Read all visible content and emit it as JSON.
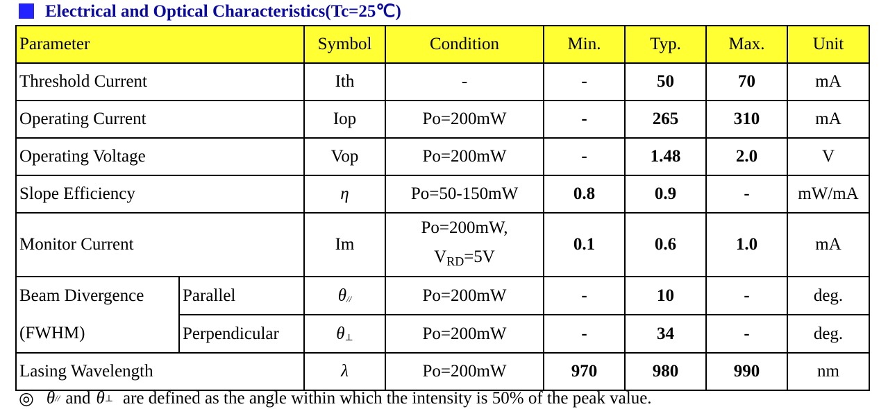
{
  "title": {
    "text": "Electrical and Optical Characteristics(Tc=25℃)",
    "accent_color": "#2323ff",
    "text_color": "#0a0aa0"
  },
  "table": {
    "header_color": "#ffff33",
    "headers": {
      "parameter": "Parameter",
      "symbol": "Symbol",
      "condition": "Condition",
      "min": "Min.",
      "typ": "Typ.",
      "max": "Max.",
      "unit": "Unit"
    },
    "rows": [
      {
        "parameter": "Threshold Current",
        "symbol": "Ith",
        "condition": "-",
        "min": "-",
        "typ": "50",
        "max": "70",
        "unit": "mA"
      },
      {
        "parameter": "Operating Current",
        "symbol": "Iop",
        "condition": "Po=200mW",
        "min": "-",
        "typ": "265",
        "max": "310",
        "unit": "mA"
      },
      {
        "parameter": "Operating Voltage",
        "symbol": "Vop",
        "condition": "Po=200mW",
        "min": "-",
        "typ": "1.48",
        "max": "2.0",
        "unit": "V"
      },
      {
        "parameter": "Slope Efficiency",
        "symbol": "η",
        "condition": "Po=50-150mW",
        "min": "0.8",
        "typ": "0.9",
        "max": "-",
        "unit": "mW/mA"
      },
      {
        "parameter": "Monitor Current",
        "symbol": "Im",
        "condition_line1": "Po=200mW,",
        "condition_line2_main": "V",
        "condition_line2_sub": "RD",
        "condition_line2_rest": "=5V",
        "min": "0.1",
        "typ": "0.6",
        "max": "1.0",
        "unit": "mA"
      }
    ],
    "beam": {
      "parameter_line1": "Beam Divergence",
      "parameter_line2": "(FWHM)",
      "parallel": {
        "sub_param": "Parallel",
        "symbol_main": "θ",
        "symbol_sub": "//",
        "condition": "Po=200mW",
        "min": "-",
        "typ": "10",
        "max": "-",
        "unit": "deg."
      },
      "perpendicular": {
        "sub_param": "Perpendicular",
        "symbol_main": "θ",
        "symbol_sub": "⊥",
        "condition": "Po=200mW",
        "min": "-",
        "typ": "34",
        "max": "-",
        "unit": "deg."
      }
    },
    "wavelength": {
      "parameter": "Lasing Wavelength",
      "symbol": "λ",
      "condition": "Po=200mW",
      "min": "970",
      "typ": "980",
      "max": "990",
      "unit": "nm"
    }
  },
  "note": {
    "mark": "◎",
    "sym1_main": "θ",
    "sym1_sub": "//",
    "and_text": "and",
    "sym2_main": "θ",
    "sym2_sub": "⊥",
    "text": "are defined as the angle within which the intensity is 50% of the peak value."
  }
}
